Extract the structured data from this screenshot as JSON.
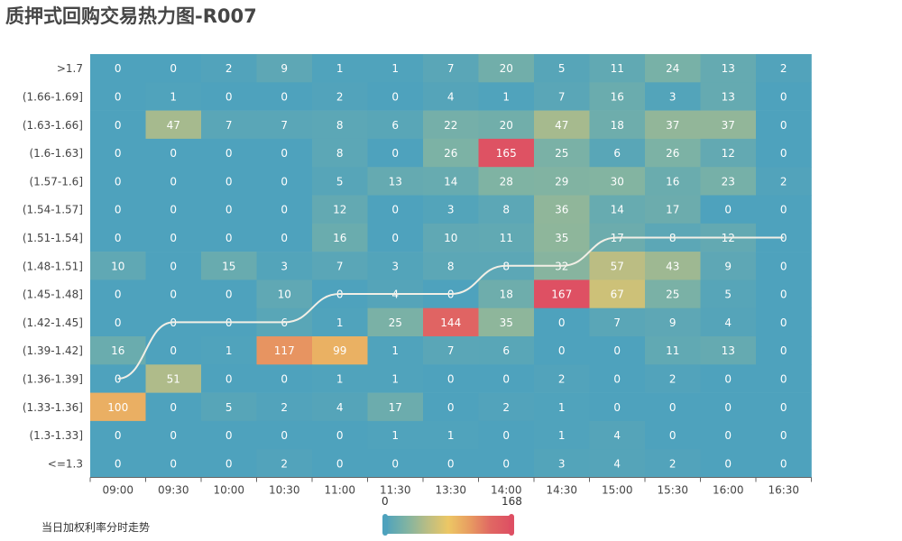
{
  "title": "质押式回购交易热力图-R007",
  "legend_label": "当日加权利率分时走势",
  "visual_map": {
    "min_label": "0",
    "max_label": "168",
    "colors": [
      "#4ea2bd",
      "#7fb3a3",
      "#b9bd84",
      "#ecc765",
      "#e89d61",
      "#e06863",
      "#de4f63"
    ]
  },
  "chart_data": {
    "type": "heatmap",
    "x": [
      "09:00",
      "09:30",
      "10:00",
      "10:30",
      "11:00",
      "11:30",
      "13:30",
      "14:00",
      "14:30",
      "15:00",
      "15:30",
      "16:00",
      "16:30"
    ],
    "y": [
      ">1.7",
      "(1.66-1.69]",
      "(1.63-1.66]",
      "(1.6-1.63]",
      "(1.57-1.6]",
      "(1.54-1.57]",
      "(1.51-1.54]",
      "(1.48-1.51]",
      "(1.45-1.48]",
      "(1.42-1.45]",
      "(1.39-1.42]",
      "(1.36-1.39]",
      "(1.33-1.36]",
      "(1.3-1.33]",
      "<=1.3"
    ],
    "values": [
      [
        0,
        0,
        2,
        9,
        1,
        1,
        7,
        20,
        5,
        11,
        24,
        13,
        2
      ],
      [
        0,
        1,
        0,
        0,
        2,
        0,
        4,
        1,
        7,
        16,
        3,
        13,
        0
      ],
      [
        0,
        47,
        7,
        7,
        8,
        6,
        22,
        20,
        47,
        18,
        37,
        37,
        0
      ],
      [
        0,
        0,
        0,
        0,
        8,
        0,
        26,
        165,
        25,
        6,
        26,
        12,
        0
      ],
      [
        0,
        0,
        0,
        0,
        5,
        13,
        14,
        28,
        29,
        30,
        16,
        23,
        2
      ],
      [
        0,
        0,
        0,
        0,
        12,
        0,
        3,
        8,
        36,
        14,
        17,
        0,
        0
      ],
      [
        0,
        0,
        0,
        0,
        16,
        0,
        10,
        11,
        35,
        17,
        8,
        12,
        0
      ],
      [
        10,
        0,
        15,
        3,
        7,
        3,
        8,
        8,
        32,
        57,
        43,
        9,
        0
      ],
      [
        0,
        0,
        0,
        10,
        0,
        4,
        0,
        18,
        167,
        67,
        25,
        5,
        0
      ],
      [
        0,
        0,
        0,
        6,
        1,
        25,
        144,
        35,
        0,
        7,
        9,
        4,
        0
      ],
      [
        16,
        0,
        1,
        117,
        99,
        1,
        7,
        6,
        0,
        0,
        11,
        13,
        0
      ],
      [
        0,
        51,
        0,
        0,
        1,
        1,
        0,
        0,
        2,
        0,
        2,
        0,
        0
      ],
      [
        100,
        0,
        5,
        2,
        4,
        17,
        0,
        2,
        1,
        0,
        0,
        0,
        0
      ],
      [
        0,
        0,
        0,
        0,
        0,
        1,
        1,
        0,
        1,
        4,
        0,
        0,
        0
      ],
      [
        0,
        0,
        0,
        2,
        0,
        0,
        0,
        0,
        3,
        4,
        2,
        0,
        0
      ]
    ],
    "trend_line": {
      "name": "当日加权利率分时走势",
      "y_category_index": [
        11,
        9,
        9,
        9,
        8,
        8,
        8,
        7,
        7,
        6,
        6,
        6,
        6
      ]
    },
    "vmin": 0,
    "vmax": 168
  }
}
